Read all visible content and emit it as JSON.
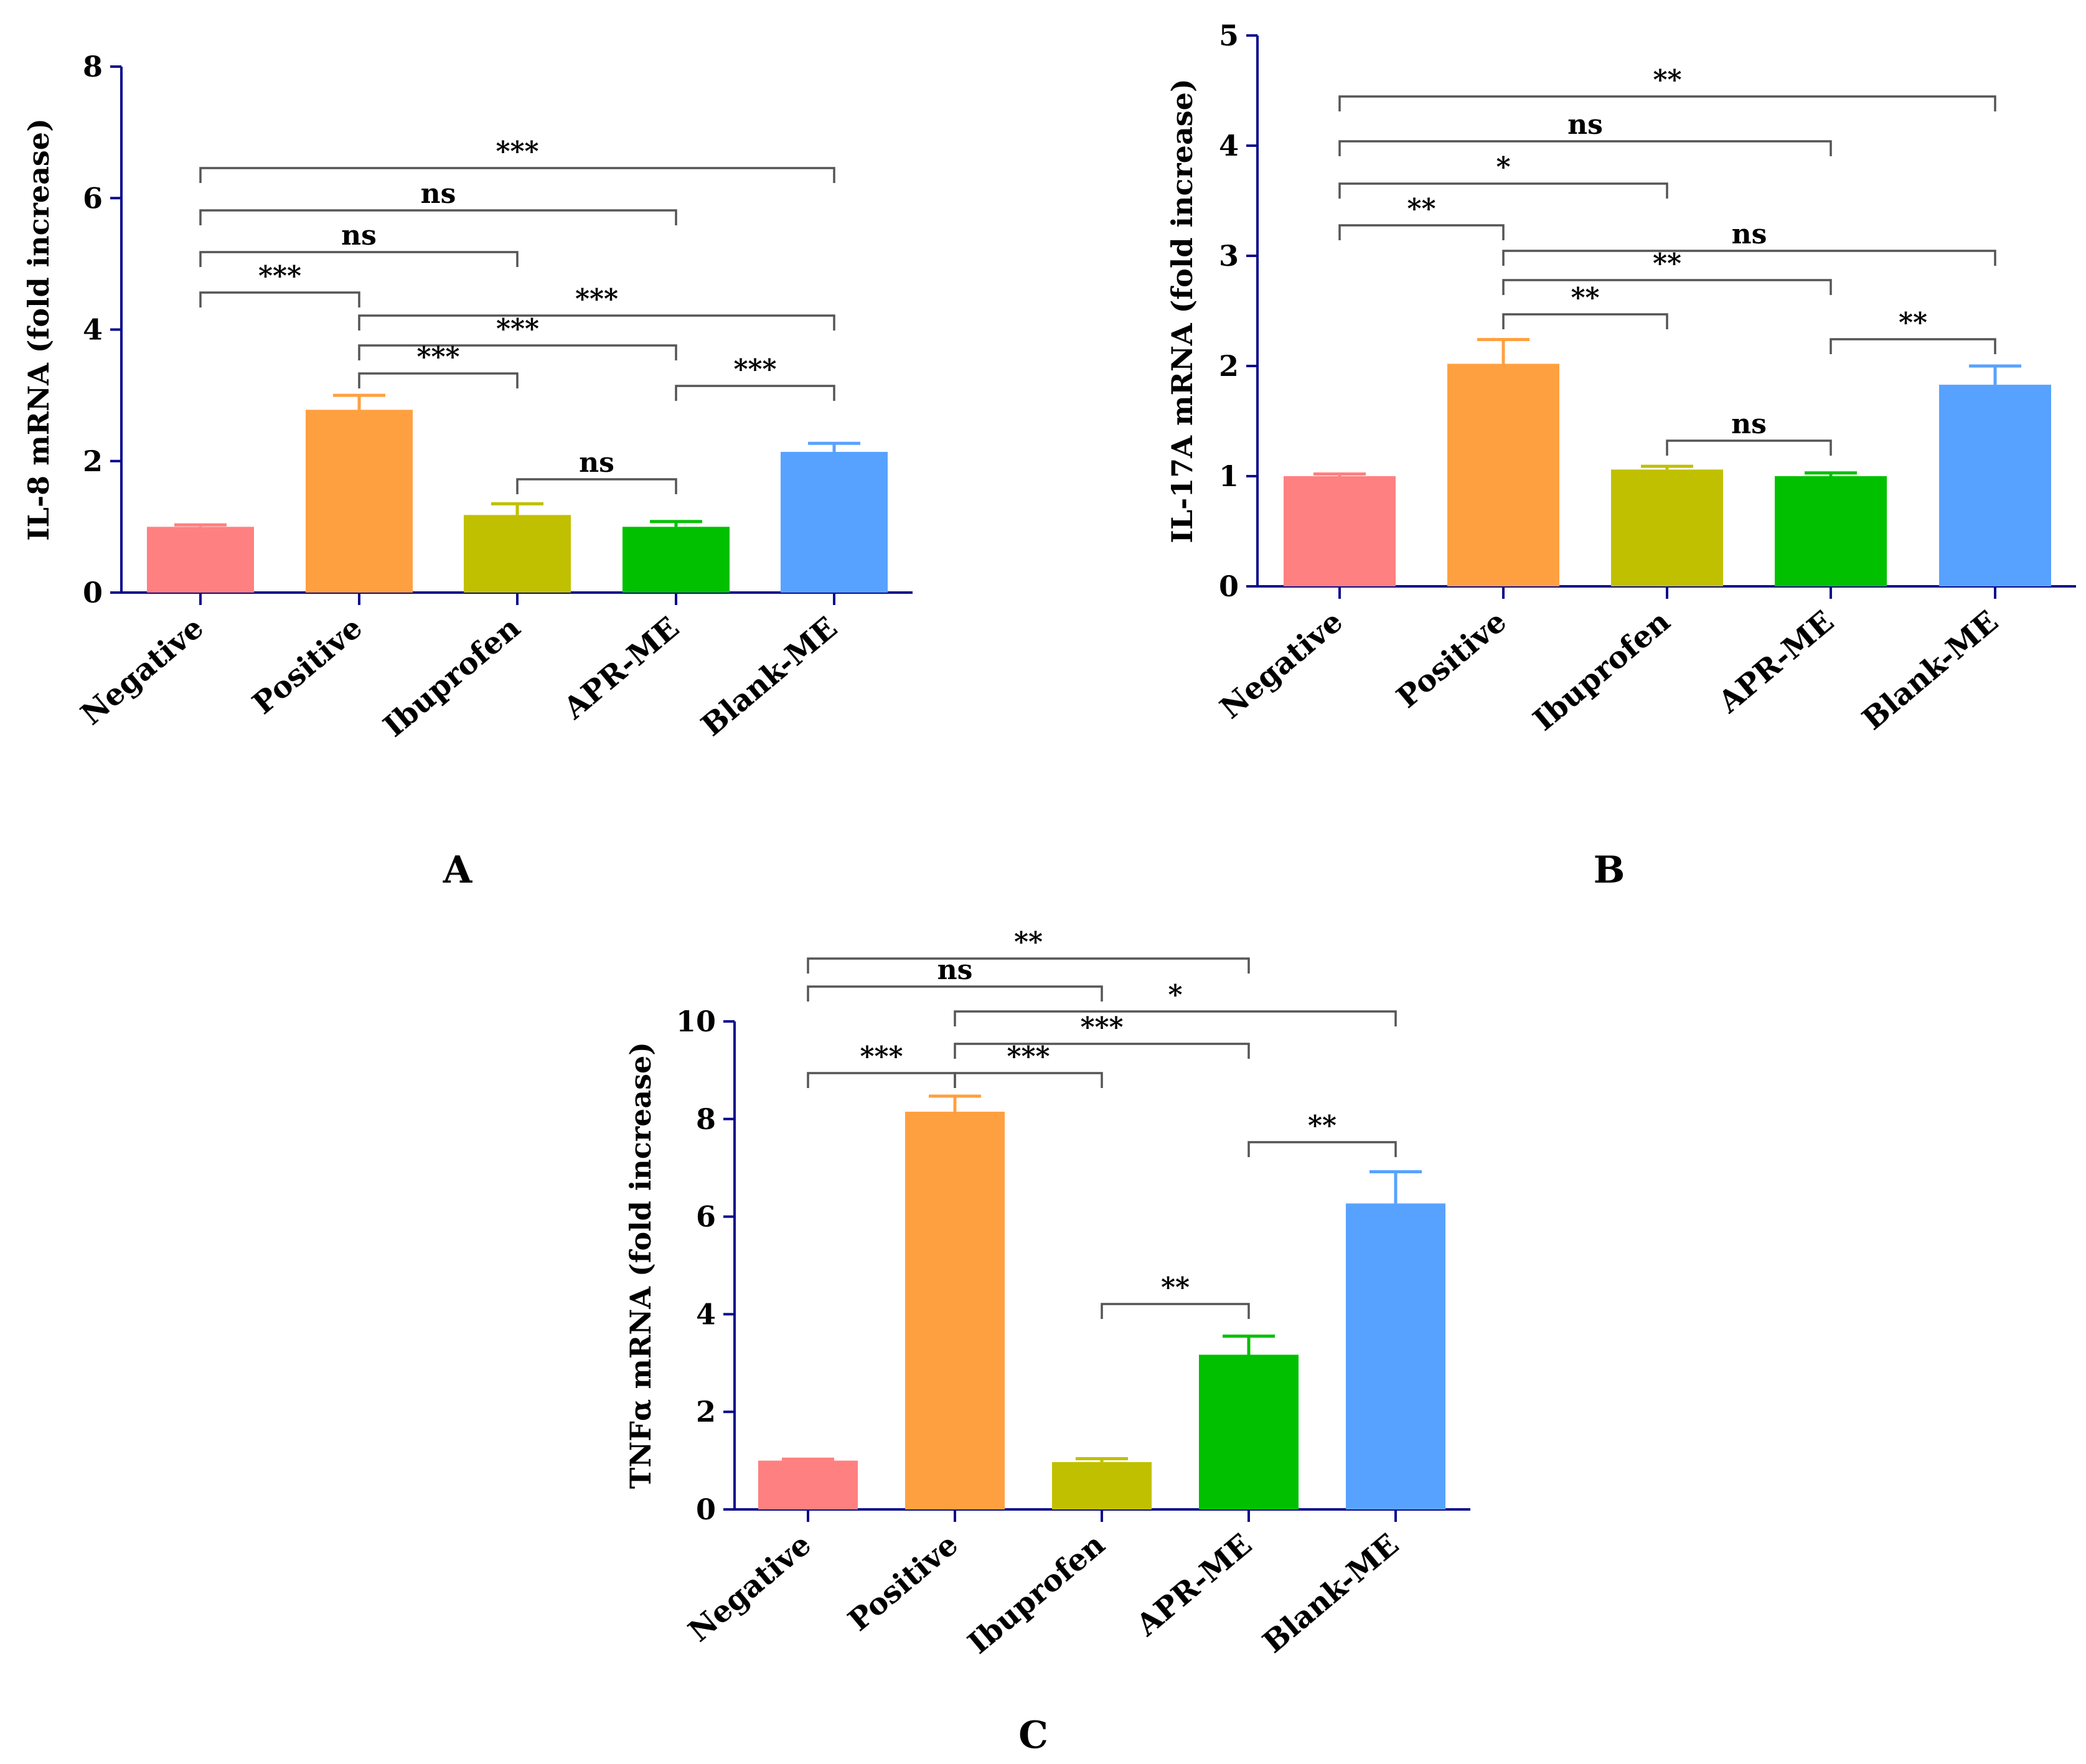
{
  "colors": {
    "Negative": "#ff8080",
    "Positive": "#ffa040",
    "Ibuprofen": "#c0c000",
    "APR-ME": "#00c000",
    "Blank-ME": "#58a2ff",
    "axis": "#0a0a8c",
    "bracket": "#555555"
  },
  "chart_data": [
    {
      "type": "bar",
      "panel": "A",
      "ylabel": "IL-8 mRNA (fold increase)",
      "categories": [
        "Negative",
        "Positive",
        "Ibuprofen",
        "APR-ME",
        "Blank-ME"
      ],
      "values": [
        1.0,
        2.78,
        1.18,
        1.0,
        2.14
      ],
      "errors": [
        0.03,
        0.22,
        0.17,
        0.08,
        0.13
      ],
      "ylim": [
        0,
        8
      ],
      "yticks": [
        0,
        2,
        4,
        6,
        8
      ],
      "comparisons": [
        {
          "a": 0,
          "b": 4,
          "label": "***"
        },
        {
          "a": 0,
          "b": 3,
          "label": "ns"
        },
        {
          "a": 0,
          "b": 2,
          "label": "ns"
        },
        {
          "a": 0,
          "b": 1,
          "label": "***"
        },
        {
          "a": 1,
          "b": 4,
          "label": "***"
        },
        {
          "a": 1,
          "b": 3,
          "label": "***"
        },
        {
          "a": 1,
          "b": 2,
          "label": "***"
        },
        {
          "a": 3,
          "b": 4,
          "label": "***"
        },
        {
          "a": 2,
          "b": 3,
          "label": "ns"
        }
      ]
    },
    {
      "type": "bar",
      "panel": "B",
      "ylabel": "IL-17A mRNA (fold increase)",
      "categories": [
        "Negative",
        "Positive",
        "Ibuprofen",
        "APR-ME",
        "Blank-ME"
      ],
      "values": [
        1.0,
        2.02,
        1.06,
        1.0,
        1.83
      ],
      "errors": [
        0.02,
        0.22,
        0.03,
        0.03,
        0.17
      ],
      "ylim": [
        0,
        5
      ],
      "yticks": [
        0,
        1,
        2,
        3,
        4,
        5
      ],
      "comparisons": [
        {
          "a": 0,
          "b": 4,
          "label": "**"
        },
        {
          "a": 0,
          "b": 3,
          "label": "ns"
        },
        {
          "a": 0,
          "b": 2,
          "label": "*"
        },
        {
          "a": 0,
          "b": 1,
          "label": "**"
        },
        {
          "a": 1,
          "b": 4,
          "label": "ns"
        },
        {
          "a": 1,
          "b": 3,
          "label": "**"
        },
        {
          "a": 1,
          "b": 2,
          "label": "**"
        },
        {
          "a": 3,
          "b": 4,
          "label": "**"
        },
        {
          "a": 2,
          "b": 3,
          "label": "ns"
        }
      ]
    },
    {
      "type": "bar",
      "panel": "C",
      "ylabel": "TNFα mRNA (fold increase)",
      "categories": [
        "Negative",
        "Positive",
        "Ibuprofen",
        "APR-ME",
        "Blank-ME"
      ],
      "values": [
        1.0,
        8.15,
        0.97,
        3.17,
        6.27
      ],
      "errors": [
        0.03,
        0.32,
        0.07,
        0.38,
        0.65
      ],
      "ylim": [
        0,
        10
      ],
      "yticks": [
        0,
        2,
        4,
        6,
        8,
        10
      ],
      "comparisons": [
        {
          "a": 0,
          "b": 3,
          "label": "**"
        },
        {
          "a": 0,
          "b": 2,
          "label": "ns"
        },
        {
          "a": 1,
          "b": 4,
          "label": "*"
        },
        {
          "a": 1,
          "b": 3,
          "label": "***"
        },
        {
          "a": 0,
          "b": 1,
          "label": "***"
        },
        {
          "a": 1,
          "b": 2,
          "label": "***"
        },
        {
          "a": 3,
          "b": 4,
          "label": "**"
        },
        {
          "a": 2,
          "b": 3,
          "label": "**"
        }
      ]
    }
  ]
}
